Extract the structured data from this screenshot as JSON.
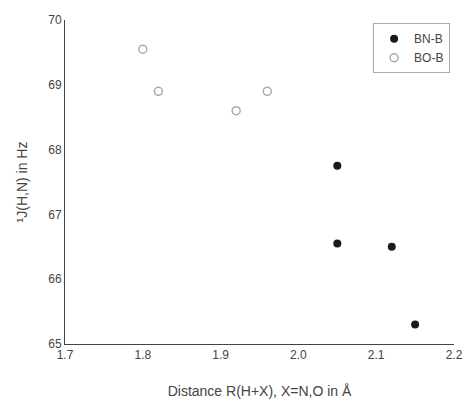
{
  "chart_data": {
    "type": "scatter",
    "xlabel": "Distance R(H+X), X=N,O in Å",
    "ylabel": "¹J(H,N) in Hz",
    "xlim": [
      1.7,
      2.2
    ],
    "ylim": [
      65,
      70
    ],
    "xticks": [
      1.7,
      1.8,
      1.9,
      {
        "value": 2.0,
        "label": "2.0"
      },
      2.1,
      2.2
    ],
    "yticks": [
      65,
      66,
      67,
      68,
      69,
      70
    ],
    "grid": false,
    "legend": "upper right",
    "series": [
      {
        "name": "BN-B",
        "color": "#1a1a1a",
        "marker": "filled",
        "x": [
          2.05,
          2.05,
          2.12,
          2.15
        ],
        "values": [
          67.75,
          66.55,
          66.5,
          65.3
        ]
      },
      {
        "name": "BO-B",
        "color": "#aaaaaa",
        "marker": "open",
        "x": [
          1.8,
          1.82,
          1.92,
          1.96
        ],
        "values": [
          69.55,
          68.9,
          68.6,
          68.9
        ]
      }
    ]
  }
}
